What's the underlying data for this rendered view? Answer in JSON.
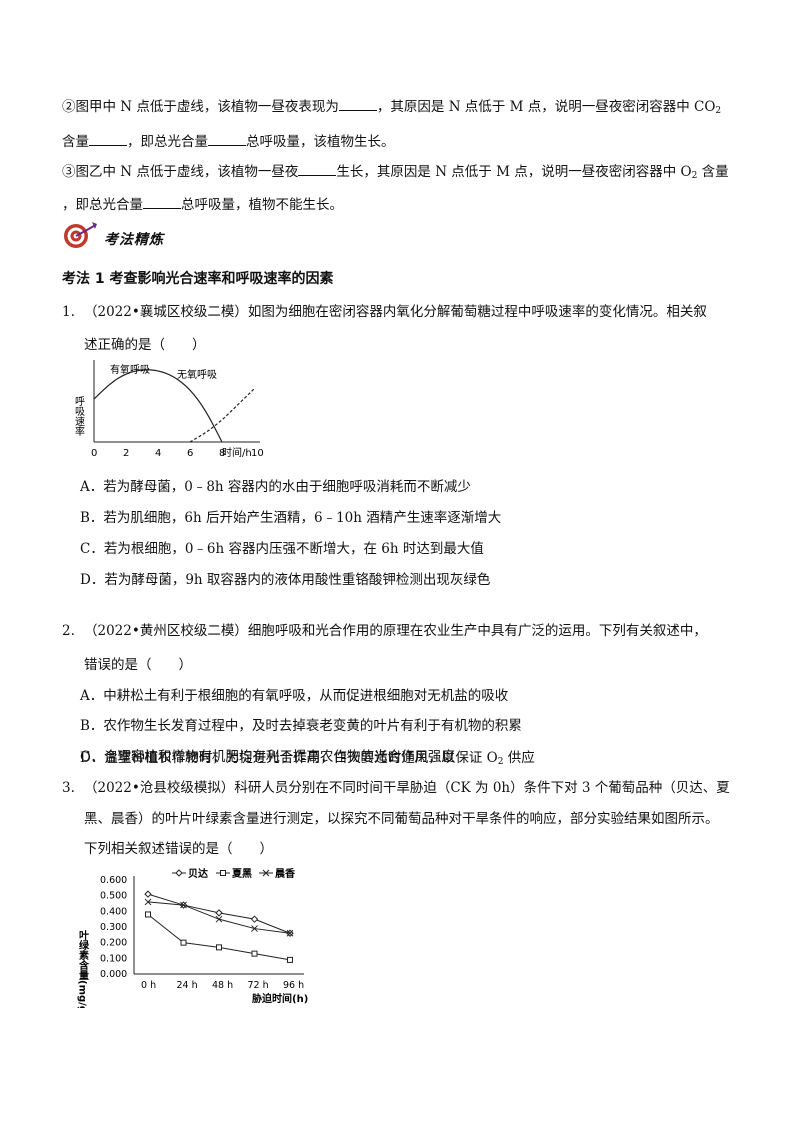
{
  "para2": {
    "l1a": "②图甲中 N 点低于虚线，该植物一昼夜表现为",
    "l1b": "，其原因是 N 点低于 M 点，说明一昼夜密闭容器中 CO",
    "l1sub": "2",
    "l2a": "含量",
    "l2b": "，即总光合量",
    "l2c": "总呼吸量，该植物生长。"
  },
  "para3": {
    "l1a": "③图乙中 N 点低于虚线，该植物一昼夜",
    "l1b": "生长，其原因是 N 点低于 M 点，说明一昼夜密闭容器中 O",
    "l1sub": "2",
    "l1c": " 含量",
    "l2a": "，即总光合量",
    "l2b": "总呼吸量，植物不能生长。"
  },
  "section_label": "考法精炼",
  "heading": "考法 1  考查影响光合速率和呼吸速率的因素",
  "q1": {
    "num": "1.",
    "stem1": "（2022•襄城区校级二模）如图为细胞在密闭容器内氧化分解葡萄糖过程中呼吸速率的变化情况。相关叙",
    "stem2": "述正确的是（　　）",
    "opts": [
      "A．若为酵母菌，0﹣8h 容器内的水由于细胞呼吸消耗而不断减少",
      "B．若为肌细胞，6h 后开始产生酒精，6﹣10h 酒精产生速率逐渐增大",
      "C．若为根细胞，0﹣6h 容器内压强不断增大，在 6h 时达到最大值",
      "D．若为酵母菌，9h 取容器内的液体用酸性重铬酸钾检测出现灰绿色"
    ]
  },
  "chart1": {
    "ylabel": "呼吸速率",
    "xlabel": "时间/h",
    "xticks": [
      "0",
      "2",
      "4",
      "6",
      "8",
      "10"
    ],
    "series_labels": [
      "有氧呼吸",
      "无氧呼吸"
    ]
  },
  "q2": {
    "num": "2.",
    "stem1": "（2022•黄州区校级二模）细胞呼吸和光合作用的原理在农业生产中具有广泛的运用。下列有关叙述中，",
    "stem2": "错误的是（　　）",
    "opts": [
      "A．中耕松土有利于根细胞的有氧呼吸，从而促进根细胞对无机盐的吸收",
      "B．农作物生长发育过程中，及时去掉衰老变黄的叶片有利于有机物的积累",
      "C．合理密植和增施有机肥均有利于提高农作物的光合作用强度"
    ],
    "optD_a": "D．温室种植农作物时，为促进光合作用，白天要适时通风，以保证 O",
    "optD_sub": "2",
    "optD_b": " 供应"
  },
  "q3": {
    "num": "3.",
    "stem1": "（2022•沧县校级模拟）科研人员分别在不同时间干旱胁迫（CK 为 0h）条件下对 3 个葡萄品种（贝达、夏",
    "stem2": "黑、晨香）的叶片叶绿素含量进行测定，以探究不同葡萄品种对干旱条件的响应，部分实验结果如图所示。",
    "stem3": "下列相关叙述错误的是（　　）"
  },
  "chart_data": [
    {
      "type": "line",
      "title": "",
      "xlabel": "时间/h",
      "ylabel": "呼吸速率",
      "xlim": [
        0,
        10
      ],
      "series": [
        {
          "name": "有氧呼吸",
          "x": [
            0,
            1,
            2,
            3,
            4,
            5,
            6,
            7,
            8
          ],
          "values": [
            0.55,
            0.75,
            0.88,
            0.93,
            0.92,
            0.84,
            0.68,
            0.4,
            0.0
          ]
        },
        {
          "name": "无氧呼吸",
          "x": [
            6,
            7,
            8,
            9,
            10
          ],
          "values": [
            0.0,
            0.12,
            0.28,
            0.48,
            0.68
          ]
        }
      ]
    },
    {
      "type": "line",
      "title": "",
      "xlabel": "胁迫时间(h)",
      "ylabel": "叶绿素含量(mg/g)",
      "categories": [
        "0 h",
        "24 h",
        "48 h",
        "72 h",
        "96 h"
      ],
      "ylim": [
        0,
        0.6
      ],
      "yticks": [
        "0.000",
        "0.100",
        "0.200",
        "0.300",
        "0.400",
        "0.500",
        "0.600"
      ],
      "series": [
        {
          "name": "贝达",
          "values": [
            0.51,
            0.44,
            0.39,
            0.35,
            0.26
          ]
        },
        {
          "name": "夏黑",
          "values": [
            0.38,
            0.2,
            0.17,
            0.13,
            0.09
          ]
        },
        {
          "name": "晨香",
          "values": [
            0.46,
            0.44,
            0.35,
            0.29,
            0.26
          ]
        }
      ]
    }
  ]
}
